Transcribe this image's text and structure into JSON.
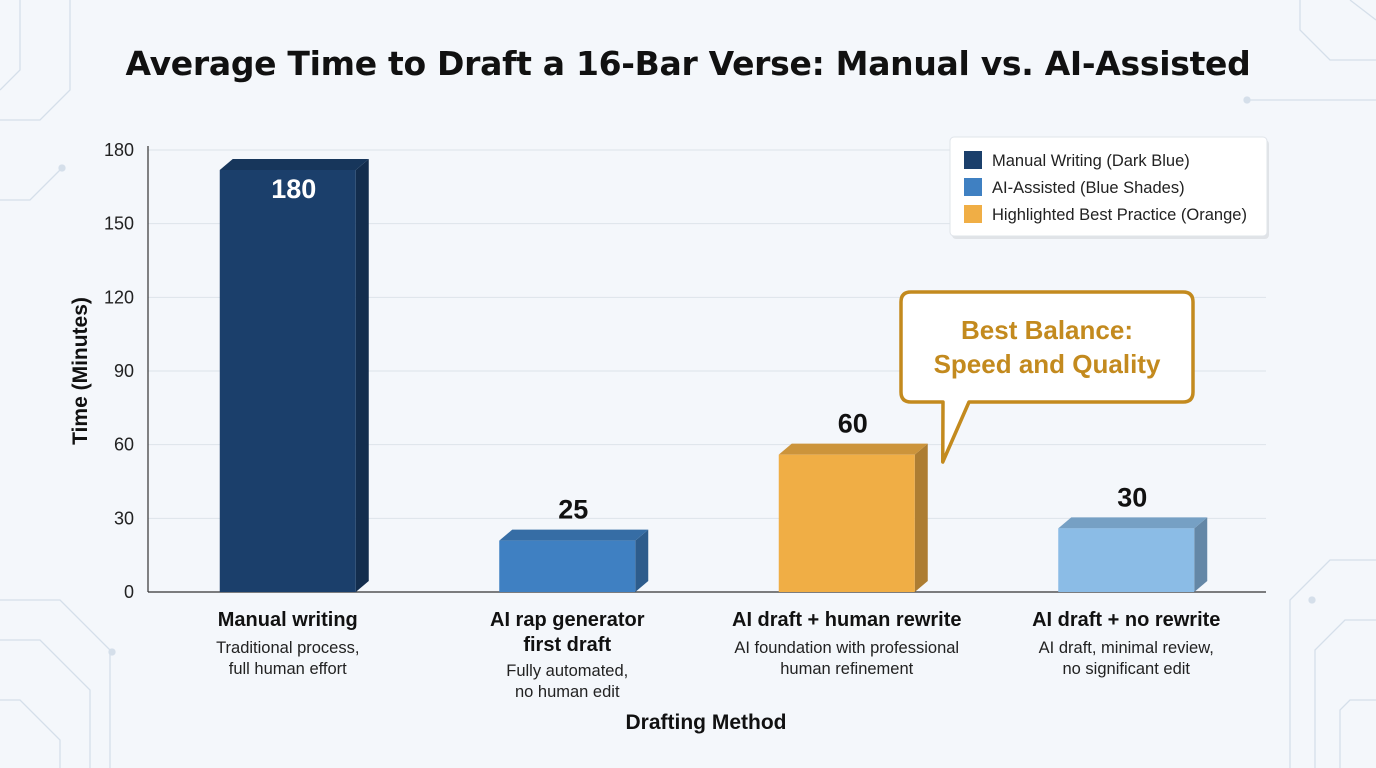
{
  "chart_data": {
    "type": "bar",
    "title": "Average Time to Draft a 16-Bar Verse: Manual vs. AI-Assisted",
    "xlabel": "Drafting Method",
    "ylabel": "Time (Minutes)",
    "ylim": [
      0,
      180
    ],
    "yticks": [
      0,
      30,
      60,
      90,
      120,
      150,
      180
    ],
    "grid": true,
    "legend_position": "top-right",
    "categories": [
      "Manual writing",
      "AI rap generator first draft",
      "AI draft + human rewrite",
      "AI draft + no rewrite"
    ],
    "category_lines": [
      [
        "Manual writing"
      ],
      [
        "AI rap generator",
        "first draft"
      ],
      [
        "AI draft + human rewrite"
      ],
      [
        "AI draft + no rewrite"
      ]
    ],
    "descriptions": [
      [
        "Traditional process,",
        "full human effort"
      ],
      [
        "Fully automated,",
        "no human edit"
      ],
      [
        "AI foundation with professional",
        "human refinement"
      ],
      [
        "AI draft, minimal review,",
        "no significant edit"
      ]
    ],
    "values": [
      180,
      25,
      60,
      30
    ],
    "value_labels": [
      "180",
      "25",
      "60",
      "30"
    ],
    "bar_colors": [
      "#1b3f6b",
      "#3f80c2",
      "#f0ae45",
      "#8bbce6"
    ],
    "legend": [
      {
        "label": "Manual Writing (Dark Blue)",
        "color": "#1b3f6b"
      },
      {
        "label": "AI-Assisted (Blue Shades)",
        "color": "#3f80c2"
      },
      {
        "label": "Highlighted Best Practice (Orange)",
        "color": "#f0ae45"
      }
    ],
    "annotation": {
      "lines": [
        "Best Balance:",
        "Speed and Quality"
      ],
      "target_category": "AI draft + human rewrite",
      "color": "#c38a1e"
    }
  }
}
